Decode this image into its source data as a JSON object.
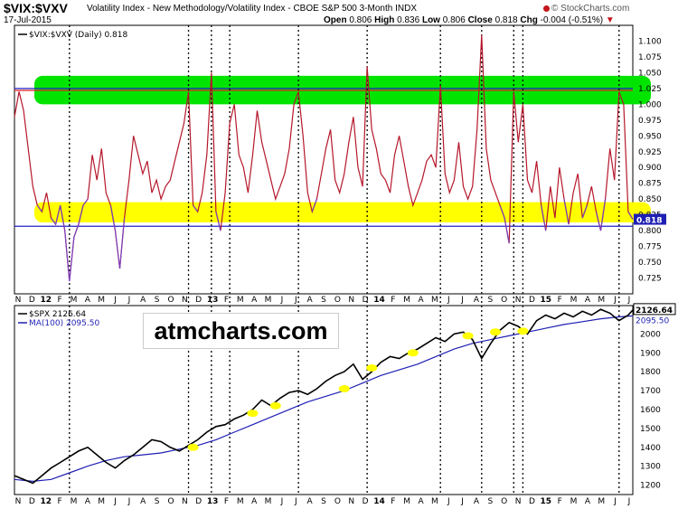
{
  "header": {
    "symbol": "$VIX:$VXV",
    "subtitle": "Volatility Index - New Methodology/Volatility Index - CBOE S&P 500 3-Month  INDX",
    "date": "17-Jul-2015",
    "open_label": "Open",
    "open_value": "0.806",
    "high_label": "High",
    "high_value": "0.836",
    "low_label": "Low",
    "low_value": "0.806",
    "close_label": "Close",
    "close_value": "0.818",
    "chg_label": "Chg",
    "chg_value": "-0.004 (-0.51%)",
    "chg_arrow": "▼",
    "logo": "© StockCharts.com"
  },
  "watermark": "atmcharts.com",
  "colors": {
    "vix_line": "#b5172b",
    "vix_low_segments": "#7a3fbf",
    "spx_line": "#000000",
    "ma_line": "#1f1fb4",
    "green_band": "#00e400",
    "yellow_band": "#ffff00",
    "blue_line": "#2020c8",
    "red_line": "#e02020",
    "marker": "#ffff00",
    "label_box": "#1f1fb4"
  },
  "chart_data": [
    {
      "type": "line",
      "name": "vix_vxv_ratio",
      "legend": "$VIX:$VXV (Daily) 0.818",
      "ylim": [
        0.7,
        1.125
      ],
      "yticks": [
        "1.100",
        "1.075",
        "1.050",
        "1.025",
        "1.000",
        "0.975",
        "0.950",
        "0.925",
        "0.900",
        "0.875",
        "0.850",
        "0.825",
        "0.800",
        "0.775",
        "0.750",
        "0.725"
      ],
      "last_value_label": "0.818",
      "reference_lines": [
        1.025,
        1.022,
        0.807
      ],
      "bands": [
        {
          "color": "green",
          "from": 1.0,
          "to": 1.045
        },
        {
          "color": "yellow",
          "from": 0.813,
          "to": 0.845
        }
      ],
      "x_month_labels": [
        "N",
        "D",
        "12",
        "F",
        "M",
        "A",
        "M",
        "J",
        "J",
        "A",
        "S",
        "O",
        "N",
        "D",
        "13",
        "F",
        "M",
        "A",
        "M",
        "J",
        "J",
        "A",
        "S",
        "O",
        "N",
        "D",
        "14",
        "F",
        "M",
        "A",
        "M",
        "J",
        "J",
        "A",
        "S",
        "O",
        "N",
        "D",
        "15",
        "F",
        "M",
        "A",
        "M",
        "J",
        "J"
      ],
      "x_year_labels": [
        "12",
        "13",
        "14",
        "15"
      ],
      "points": [
        [
          0,
          0.98
        ],
        [
          1,
          1.02
        ],
        [
          2,
          0.99
        ],
        [
          3,
          0.93
        ],
        [
          4,
          0.87
        ],
        [
          5,
          0.84
        ],
        [
          6,
          0.83
        ],
        [
          7,
          0.86
        ],
        [
          8,
          0.82
        ],
        [
          9,
          0.81
        ],
        [
          10,
          0.84
        ],
        [
          11,
          0.8
        ],
        [
          12,
          0.72
        ],
        [
          13,
          0.79
        ],
        [
          14,
          0.81
        ],
        [
          15,
          0.84
        ],
        [
          16,
          0.85
        ],
        [
          17,
          0.92
        ],
        [
          18,
          0.88
        ],
        [
          19,
          0.93
        ],
        [
          20,
          0.86
        ],
        [
          21,
          0.84
        ],
        [
          22,
          0.8
        ],
        [
          23,
          0.74
        ],
        [
          24,
          0.82
        ],
        [
          25,
          0.88
        ],
        [
          26,
          0.95
        ],
        [
          27,
          0.92
        ],
        [
          28,
          0.89
        ],
        [
          29,
          0.91
        ],
        [
          30,
          0.86
        ],
        [
          31,
          0.88
        ],
        [
          32,
          0.85
        ],
        [
          33,
          0.87
        ],
        [
          34,
          0.88
        ],
        [
          35,
          0.91
        ],
        [
          36,
          0.94
        ],
        [
          37,
          0.97
        ],
        [
          38,
          1.02
        ],
        [
          39,
          0.84
        ],
        [
          40,
          0.83
        ],
        [
          41,
          0.86
        ],
        [
          42,
          0.92
        ],
        [
          43,
          1.05
        ],
        [
          44,
          0.83
        ],
        [
          45,
          0.8
        ],
        [
          46,
          0.86
        ],
        [
          47,
          0.97
        ],
        [
          48,
          1.0
        ],
        [
          49,
          0.92
        ],
        [
          50,
          0.9
        ],
        [
          51,
          0.86
        ],
        [
          52,
          0.92
        ],
        [
          53,
          0.99
        ],
        [
          54,
          0.94
        ],
        [
          55,
          0.91
        ],
        [
          56,
          0.88
        ],
        [
          57,
          0.85
        ],
        [
          58,
          0.87
        ],
        [
          59,
          0.89
        ],
        [
          60,
          0.93
        ],
        [
          61,
          1.0
        ],
        [
          62,
          1.02
        ],
        [
          63,
          0.95
        ],
        [
          64,
          0.86
        ],
        [
          65,
          0.83
        ],
        [
          66,
          0.85
        ],
        [
          67,
          0.89
        ],
        [
          68,
          0.93
        ],
        [
          69,
          0.96
        ],
        [
          70,
          0.88
        ],
        [
          71,
          0.86
        ],
        [
          72,
          0.89
        ],
        [
          73,
          0.94
        ],
        [
          74,
          0.98
        ],
        [
          75,
          0.9
        ],
        [
          76,
          0.87
        ],
        [
          77,
          1.06
        ],
        [
          78,
          0.96
        ],
        [
          79,
          0.93
        ],
        [
          80,
          0.89
        ],
        [
          81,
          0.88
        ],
        [
          82,
          0.86
        ],
        [
          83,
          0.92
        ],
        [
          84,
          0.95
        ],
        [
          85,
          0.91
        ],
        [
          86,
          0.87
        ],
        [
          87,
          0.84
        ],
        [
          88,
          0.86
        ],
        [
          89,
          0.88
        ],
        [
          90,
          0.91
        ],
        [
          91,
          0.92
        ],
        [
          92,
          0.9
        ],
        [
          93,
          1.03
        ],
        [
          94,
          0.89
        ],
        [
          95,
          0.86
        ],
        [
          96,
          0.88
        ],
        [
          97,
          0.94
        ],
        [
          98,
          0.87
        ],
        [
          99,
          0.85
        ],
        [
          100,
          0.87
        ],
        [
          101,
          0.96
        ],
        [
          102,
          1.11
        ],
        [
          103,
          0.93
        ],
        [
          104,
          0.88
        ],
        [
          105,
          0.86
        ],
        [
          106,
          0.84
        ],
        [
          107,
          0.82
        ],
        [
          108,
          0.78
        ],
        [
          109,
          1.02
        ],
        [
          110,
          0.94
        ],
        [
          111,
          1.0
        ],
        [
          112,
          0.88
        ],
        [
          113,
          0.86
        ],
        [
          114,
          0.91
        ],
        [
          115,
          0.84
        ],
        [
          116,
          0.8
        ],
        [
          117,
          0.87
        ],
        [
          118,
          0.82
        ],
        [
          119,
          0.9
        ],
        [
          120,
          0.85
        ],
        [
          121,
          0.81
        ],
        [
          122,
          0.86
        ],
        [
          123,
          0.89
        ],
        [
          124,
          0.82
        ],
        [
          125,
          0.84
        ],
        [
          126,
          0.87
        ],
        [
          127,
          0.83
        ],
        [
          128,
          0.8
        ],
        [
          129,
          0.85
        ],
        [
          130,
          0.93
        ],
        [
          131,
          0.88
        ],
        [
          132,
          1.02
        ],
        [
          133,
          1.0
        ],
        [
          134,
          0.83
        ],
        [
          135,
          0.818
        ]
      ]
    },
    {
      "type": "line",
      "name": "spx",
      "legend_series": "$SPX 2126.64",
      "legend_ma": "MA(100) 2095.50",
      "ylim": [
        1150,
        2150
      ],
      "yticks": [
        "2000",
        "1900",
        "1800",
        "1700",
        "1600",
        "1500",
        "1400",
        "1300",
        "1200"
      ],
      "last_value_label": "2126.64",
      "ma_value_label": "2095.50",
      "x_month_labels": [
        "N",
        "D",
        "12",
        "F",
        "M",
        "A",
        "M",
        "J",
        "J",
        "A",
        "S",
        "O",
        "N",
        "D",
        "13",
        "F",
        "M",
        "A",
        "M",
        "J",
        "J",
        "A",
        "S",
        "O",
        "N",
        "D",
        "14",
        "F",
        "M",
        "A",
        "M",
        "J",
        "J",
        "A",
        "S",
        "O",
        "N",
        "D",
        "15",
        "F",
        "M",
        "A",
        "M",
        "J",
        "J"
      ],
      "x_year_labels": [
        "12",
        "13",
        "14",
        "15"
      ],
      "price": [
        [
          0,
          1250
        ],
        [
          2,
          1230
        ],
        [
          4,
          1210
        ],
        [
          6,
          1250
        ],
        [
          8,
          1290
        ],
        [
          10,
          1320
        ],
        [
          12,
          1350
        ],
        [
          14,
          1380
        ],
        [
          16,
          1400
        ],
        [
          18,
          1360
        ],
        [
          20,
          1320
        ],
        [
          22,
          1290
        ],
        [
          24,
          1330
        ],
        [
          26,
          1360
        ],
        [
          28,
          1400
        ],
        [
          30,
          1440
        ],
        [
          32,
          1430
        ],
        [
          34,
          1400
        ],
        [
          36,
          1380
        ],
        [
          38,
          1410
        ],
        [
          40,
          1440
        ],
        [
          42,
          1480
        ],
        [
          44,
          1510
        ],
        [
          46,
          1520
        ],
        [
          48,
          1550
        ],
        [
          50,
          1570
        ],
        [
          52,
          1600
        ],
        [
          54,
          1650
        ],
        [
          56,
          1620
        ],
        [
          58,
          1660
        ],
        [
          60,
          1690
        ],
        [
          62,
          1700
        ],
        [
          64,
          1680
        ],
        [
          66,
          1710
        ],
        [
          68,
          1750
        ],
        [
          70,
          1780
        ],
        [
          72,
          1800
        ],
        [
          74,
          1840
        ],
        [
          76,
          1760
        ],
        [
          78,
          1800
        ],
        [
          80,
          1850
        ],
        [
          82,
          1880
        ],
        [
          84,
          1870
        ],
        [
          86,
          1900
        ],
        [
          88,
          1920
        ],
        [
          90,
          1950
        ],
        [
          92,
          1980
        ],
        [
          94,
          1960
        ],
        [
          96,
          2000
        ],
        [
          98,
          2010
        ],
        [
          100,
          1970
        ],
        [
          102,
          1870
        ],
        [
          104,
          1950
        ],
        [
          106,
          2020
        ],
        [
          108,
          2060
        ],
        [
          110,
          2040
        ],
        [
          112,
          2000
        ],
        [
          114,
          2070
        ],
        [
          116,
          2100
        ],
        [
          118,
          2080
        ],
        [
          120,
          2110
        ],
        [
          122,
          2090
        ],
        [
          124,
          2120
        ],
        [
          126,
          2100
        ],
        [
          128,
          2130
        ],
        [
          130,
          2110
        ],
        [
          132,
          2070
        ],
        [
          134,
          2100
        ],
        [
          135,
          2126.64
        ]
      ],
      "ma100": [
        [
          0,
          1230
        ],
        [
          4,
          1220
        ],
        [
          8,
          1230
        ],
        [
          12,
          1265
        ],
        [
          16,
          1300
        ],
        [
          20,
          1330
        ],
        [
          24,
          1350
        ],
        [
          28,
          1360
        ],
        [
          32,
          1370
        ],
        [
          36,
          1390
        ],
        [
          40,
          1410
        ],
        [
          44,
          1440
        ],
        [
          48,
          1480
        ],
        [
          52,
          1520
        ],
        [
          56,
          1560
        ],
        [
          60,
          1600
        ],
        [
          64,
          1640
        ],
        [
          68,
          1670
        ],
        [
          72,
          1700
        ],
        [
          76,
          1740
        ],
        [
          80,
          1780
        ],
        [
          84,
          1810
        ],
        [
          88,
          1840
        ],
        [
          92,
          1880
        ],
        [
          96,
          1920
        ],
        [
          100,
          1950
        ],
        [
          104,
          1970
        ],
        [
          108,
          1990
        ],
        [
          112,
          2010
        ],
        [
          116,
          2030
        ],
        [
          120,
          2050
        ],
        [
          124,
          2065
        ],
        [
          128,
          2080
        ],
        [
          132,
          2090
        ],
        [
          135,
          2095.5
        ]
      ],
      "touch_markers": [
        [
          39,
          1400
        ],
        [
          52,
          1580
        ],
        [
          57,
          1620
        ],
        [
          72,
          1710
        ],
        [
          78,
          1820
        ],
        [
          87,
          1900
        ],
        [
          99,
          1990
        ],
        [
          105,
          2010
        ],
        [
          111,
          2015
        ]
      ]
    }
  ]
}
